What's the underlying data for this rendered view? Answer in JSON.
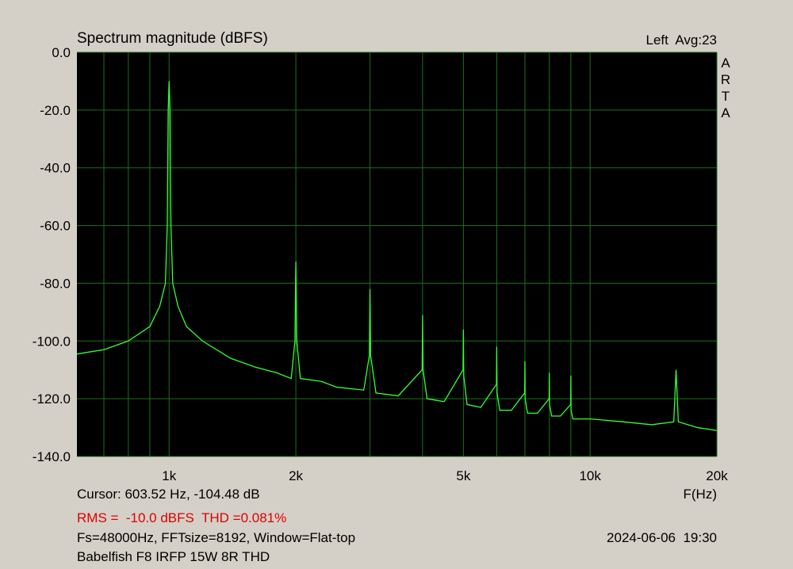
{
  "chart_data": {
    "type": "line",
    "title": "Spectrum magnitude (dBFS)",
    "channel_label": "Left  Avg:23",
    "logo": "ARTA",
    "x_label": "F(Hz)",
    "cursor_text": "Cursor: 603.52 Hz, -104.48 dB",
    "rms_text": "RMS =  -10.0 dBFS  THD =0.081%",
    "settings_text": "Fs=48000Hz, FFTsize=8192, Window=Flat-top",
    "timestamp": "2024-06-06  19:30",
    "description": "Babelfish F8 IRFP 15W 8R THD",
    "x_log": true,
    "grid": true,
    "xlim": [
      604,
      20000
    ],
    "ylim": [
      -140,
      0
    ],
    "xticks": [
      {
        "value": 1000,
        "label": "1k"
      },
      {
        "value": 2000,
        "label": "2k"
      },
      {
        "value": 5000,
        "label": "5k"
      },
      {
        "value": 10000,
        "label": "10k"
      },
      {
        "value": 20000,
        "label": "20k"
      }
    ],
    "x_minor_grid": [
      700,
      800,
      900,
      3000,
      4000,
      6000,
      7000,
      8000,
      9000
    ],
    "yticks": [
      {
        "value": -140,
        "label": "-140.0"
      },
      {
        "value": -120,
        "label": "-120.0"
      },
      {
        "value": -100,
        "label": "-100.0"
      },
      {
        "value": -80,
        "label": "-80.0"
      },
      {
        "value": -60,
        "label": "-60.0"
      },
      {
        "value": -40,
        "label": "-40.0"
      },
      {
        "value": -20,
        "label": "-20.0"
      },
      {
        "value": 0,
        "label": "0.0"
      }
    ],
    "x": [
      604,
      700,
      800,
      900,
      950,
      980,
      990,
      995,
      1000,
      1005,
      1010,
      1020,
      1050,
      1100,
      1200,
      1400,
      1600,
      1800,
      1950,
      1990,
      2000,
      2010,
      2050,
      2300,
      2500,
      2900,
      2990,
      3000,
      3010,
      3100,
      3500,
      3990,
      4000,
      4010,
      4100,
      4500,
      4990,
      5000,
      5010,
      5100,
      5500,
      5990,
      6000,
      6010,
      6100,
      6500,
      6990,
      7000,
      7010,
      7100,
      7500,
      7990,
      8000,
      8010,
      8100,
      8500,
      8990,
      9000,
      9010,
      9100,
      10000,
      12000,
      14000,
      15800,
      16000,
      16200,
      18000,
      20000
    ],
    "series": [
      {
        "name": "Spectrum",
        "color": "#33ff33",
        "values": [
          -104.5,
          -103,
          -100,
          -95,
          -88,
          -80,
          -60,
          -20,
          -10,
          -20,
          -60,
          -80,
          -88,
          -95,
          -100,
          -106,
          -109,
          -111,
          -113,
          -100,
          -72.5,
          -100,
          -113,
          -114,
          -116,
          -117,
          -105,
          -82,
          -105,
          -118,
          -119,
          -110,
          -91,
          -110,
          -120,
          -121,
          -110,
          -96,
          -112,
          -122,
          -123,
          -115,
          -102,
          -118,
          -124,
          -124,
          -118,
          -107,
          -120,
          -125,
          -125,
          -120,
          -111,
          -122,
          -126,
          -126,
          -122,
          -112,
          -124,
          -127,
          -127,
          -128,
          -129,
          -128,
          -110,
          -128,
          -130,
          -131
        ]
      }
    ]
  }
}
